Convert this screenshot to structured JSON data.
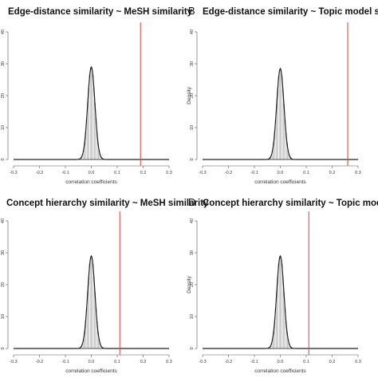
{
  "chart_data": [
    {
      "type": "histogram",
      "panel_label": "",
      "title": "Edge-distance similarity ~ MeSH similarity",
      "xlabel": "correlation coefficients",
      "ylabel": "",
      "xlim": [
        -0.3,
        0.3
      ],
      "ylim": [
        0,
        40
      ],
      "x_ticks": [
        "-0.3",
        "-0.2",
        "-0.1",
        "0.0",
        "0.1",
        "0.2",
        "0.3"
      ],
      "y_ticks": [
        "0",
        "10",
        "20",
        "30",
        "40"
      ],
      "density_peak": 29,
      "spread_sd": 0.014,
      "observed_line_x": 0.19,
      "line_color": "#d9534f"
    },
    {
      "type": "histogram",
      "panel_label": "B",
      "title": "Edge-distance similarity ~ Topic model similarity",
      "xlabel": "correlation coefficients",
      "ylabel": "Density",
      "xlim": [
        -0.3,
        0.3
      ],
      "ylim": [
        0,
        40
      ],
      "x_ticks": [
        "-0.3",
        "-0.2",
        "-0.1",
        "0.0",
        "0.1",
        "0.2",
        "0.3"
      ],
      "y_ticks": [
        "0",
        "10",
        "20",
        "30",
        "40"
      ],
      "density_peak": 28.5,
      "spread_sd": 0.014,
      "observed_line_x": 0.26,
      "line_color": "#d9534f"
    },
    {
      "type": "histogram",
      "panel_label": "",
      "title": "Concept hierarchy similarity ~ MeSH similarity",
      "xlabel": "correlation coefficients",
      "ylabel": "",
      "xlim": [
        -0.3,
        0.3
      ],
      "ylim": [
        0,
        40
      ],
      "x_ticks": [
        "-0.3",
        "-0.2",
        "-0.1",
        "0.0",
        "0.1",
        "0.2",
        "0.3"
      ],
      "y_ticks": [
        "0",
        "10",
        "20",
        "30",
        "40"
      ],
      "density_peak": 29,
      "spread_sd": 0.014,
      "observed_line_x": 0.11,
      "line_color": "#d9534f"
    },
    {
      "type": "histogram",
      "panel_label": "D",
      "title": "Concept hierarchy similarity ~ Topic model similarity",
      "xlabel": "correlation coefficients",
      "ylabel": "Density",
      "xlim": [
        -0.3,
        0.3
      ],
      "ylim": [
        0,
        40
      ],
      "x_ticks": [
        "-0.3",
        "-0.2",
        "-0.1",
        "0.0",
        "0.1",
        "0.2",
        "0.3"
      ],
      "y_ticks": [
        "0",
        "10",
        "20",
        "30",
        "40"
      ],
      "density_peak": 29,
      "spread_sd": 0.014,
      "observed_line_x": 0.11,
      "line_color": "#d9534f"
    }
  ]
}
